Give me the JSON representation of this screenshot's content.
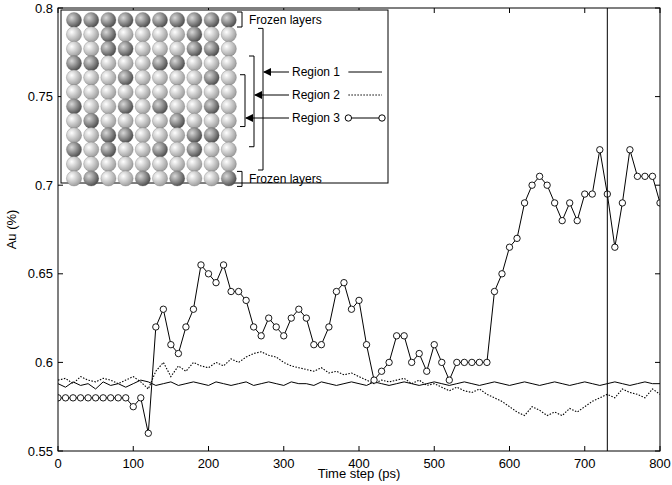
{
  "chart_data": {
    "type": "line",
    "x_label": "Time step (ps)",
    "y_label": "Au (%)",
    "x": [
      0,
      10,
      20,
      30,
      40,
      50,
      60,
      70,
      80,
      90,
      100,
      110,
      120,
      130,
      140,
      150,
      160,
      170,
      180,
      190,
      200,
      210,
      220,
      230,
      240,
      250,
      260,
      270,
      280,
      290,
      300,
      310,
      320,
      330,
      340,
      350,
      360,
      370,
      380,
      390,
      400,
      410,
      420,
      430,
      440,
      450,
      460,
      470,
      480,
      490,
      500,
      510,
      520,
      530,
      540,
      550,
      560,
      570,
      580,
      590,
      600,
      610,
      620,
      630,
      640,
      650,
      660,
      670,
      680,
      690,
      700,
      710,
      720,
      730,
      740,
      750,
      760,
      770,
      780,
      790,
      800
    ],
    "series": [
      {
        "name": "Region 1",
        "color": "#000000",
        "line_style": "solid",
        "marker": "none",
        "values": [
          0.588,
          0.586,
          0.589,
          0.587,
          0.588,
          0.585,
          0.589,
          0.587,
          0.588,
          0.586,
          0.588,
          0.59,
          0.589,
          0.587,
          0.588,
          0.589,
          0.587,
          0.588,
          0.589,
          0.588,
          0.587,
          0.589,
          0.588,
          0.587,
          0.588,
          0.589,
          0.587,
          0.588,
          0.589,
          0.588,
          0.587,
          0.589,
          0.588,
          0.588,
          0.587,
          0.589,
          0.588,
          0.587,
          0.588,
          0.589,
          0.588,
          0.587,
          0.589,
          0.588,
          0.587,
          0.588,
          0.589,
          0.588,
          0.587,
          0.588,
          0.589,
          0.588,
          0.587,
          0.588,
          0.589,
          0.588,
          0.587,
          0.588,
          0.589,
          0.588,
          0.587,
          0.588,
          0.589,
          0.588,
          0.587,
          0.588,
          0.589,
          0.588,
          0.587,
          0.588,
          0.589,
          0.588,
          0.587,
          0.588,
          0.589,
          0.588,
          0.587,
          0.588,
          0.589,
          0.588,
          0.588
        ]
      },
      {
        "name": "Region 2",
        "color": "#000000",
        "line_style": "dotted",
        "marker": "none",
        "values": [
          0.59,
          0.591,
          0.588,
          0.592,
          0.59,
          0.589,
          0.591,
          0.59,
          0.588,
          0.59,
          0.592,
          0.589,
          0.585,
          0.595,
          0.6,
          0.592,
          0.598,
          0.595,
          0.6,
          0.598,
          0.597,
          0.6,
          0.598,
          0.602,
          0.6,
          0.603,
          0.605,
          0.606,
          0.604,
          0.603,
          0.6,
          0.598,
          0.597,
          0.596,
          0.595,
          0.597,
          0.594,
          0.595,
          0.593,
          0.594,
          0.592,
          0.59,
          0.588,
          0.59,
          0.589,
          0.59,
          0.591,
          0.588,
          0.59,
          0.587,
          0.588,
          0.586,
          0.584,
          0.586,
          0.584,
          0.583,
          0.585,
          0.582,
          0.58,
          0.578,
          0.575,
          0.572,
          0.57,
          0.575,
          0.573,
          0.57,
          0.572,
          0.57,
          0.574,
          0.572,
          0.575,
          0.578,
          0.58,
          0.582,
          0.58,
          0.585,
          0.583,
          0.582,
          0.58,
          0.585,
          0.582
        ]
      },
      {
        "name": "Region 3",
        "color": "#000000",
        "line_style": "solid",
        "marker": "circle",
        "values": [
          0.58,
          0.58,
          0.58,
          0.58,
          0.58,
          0.58,
          0.58,
          0.58,
          0.58,
          0.58,
          0.575,
          0.58,
          0.56,
          0.62,
          0.63,
          0.61,
          0.605,
          0.62,
          0.63,
          0.655,
          0.65,
          0.645,
          0.655,
          0.64,
          0.64,
          0.635,
          0.62,
          0.615,
          0.625,
          0.62,
          0.615,
          0.625,
          0.63,
          0.625,
          0.61,
          0.61,
          0.62,
          0.64,
          0.645,
          0.63,
          0.635,
          0.61,
          0.59,
          0.595,
          0.6,
          0.615,
          0.615,
          0.6,
          0.605,
          0.595,
          0.61,
          0.6,
          0.59,
          0.6,
          0.6,
          0.6,
          0.6,
          0.6,
          0.64,
          0.65,
          0.665,
          0.67,
          0.69,
          0.7,
          0.705,
          0.7,
          0.69,
          0.68,
          0.69,
          0.68,
          0.695,
          0.695,
          0.72,
          0.695,
          0.665,
          0.69,
          0.72,
          0.705,
          0.705,
          0.705,
          0.69
        ]
      }
    ],
    "xlim": [
      0,
      800
    ],
    "ylim": [
      0.55,
      0.8
    ],
    "xticks": [
      0,
      100,
      200,
      300,
      400,
      500,
      600,
      700,
      800
    ],
    "yticks": [
      0.55,
      0.6,
      0.65,
      0.7,
      0.75,
      0.8
    ],
    "vlines": [
      730
    ],
    "annotations": [
      "Frozen layers",
      "Frozen layers"
    ],
    "legend": "top-left",
    "grid": false
  }
}
